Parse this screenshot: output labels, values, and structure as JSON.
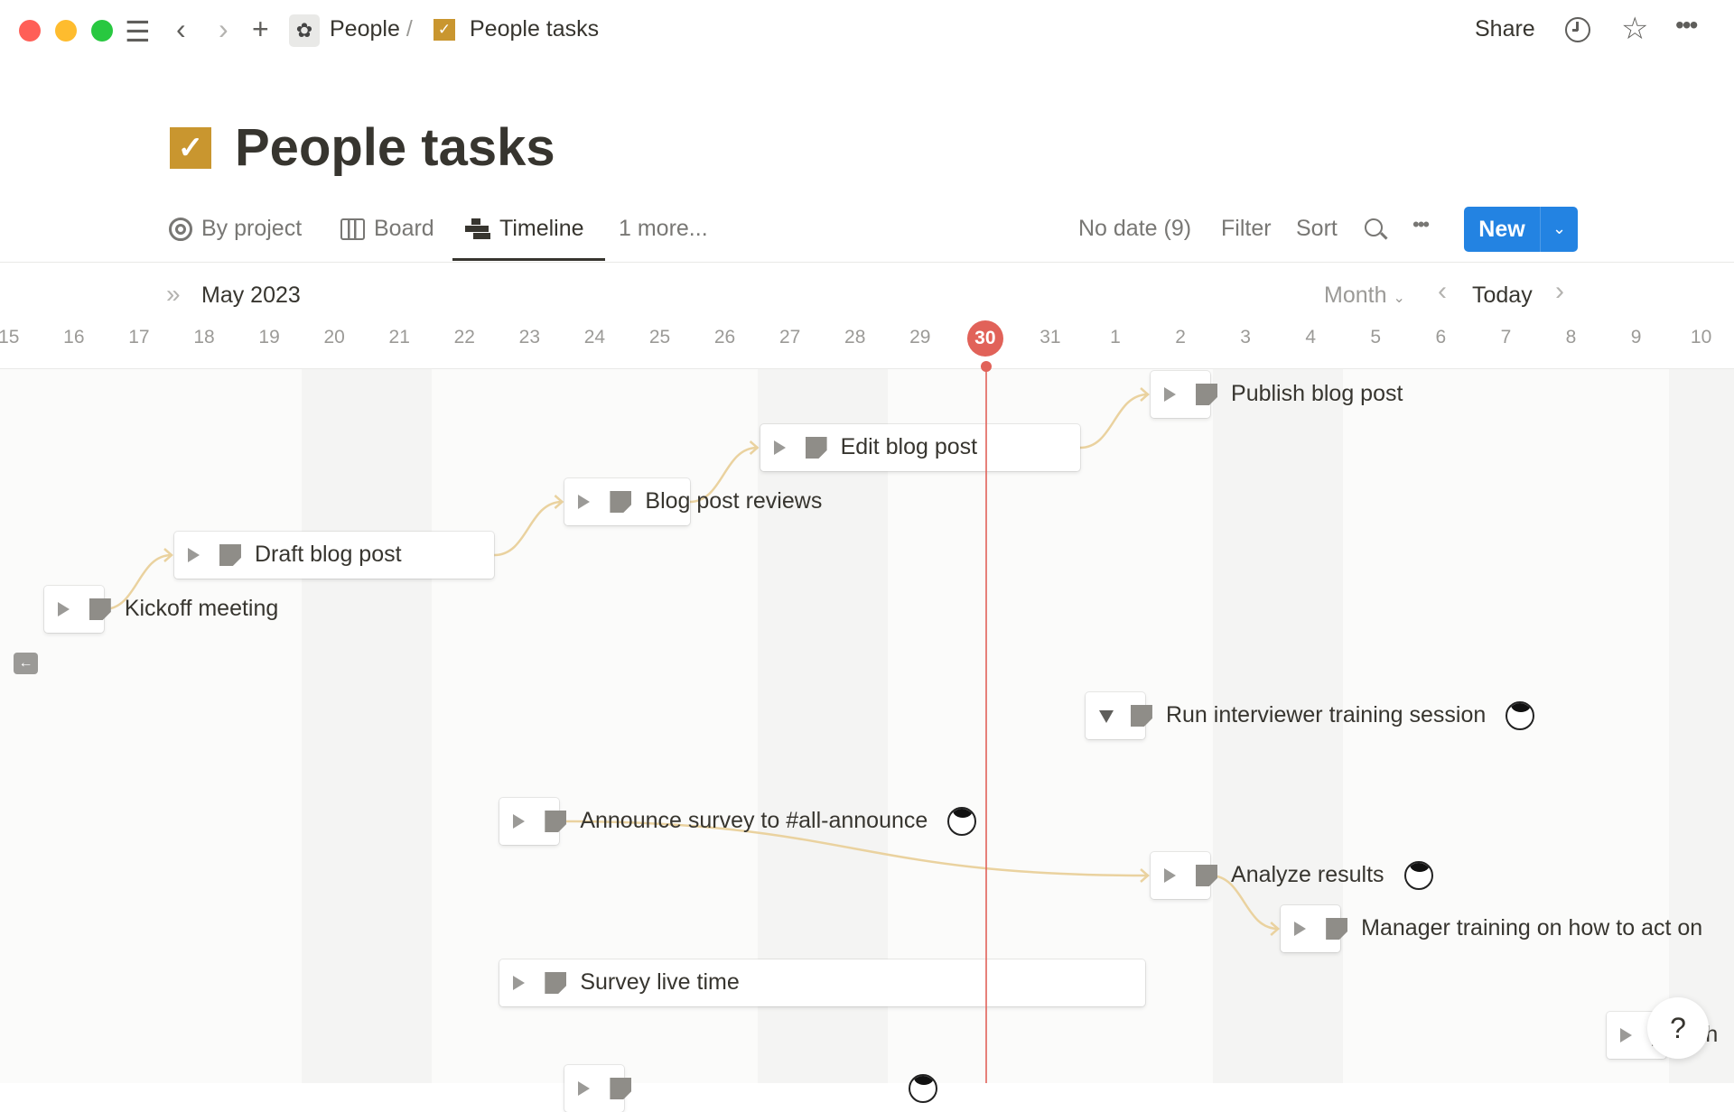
{
  "window": {
    "traffic_lights": [
      "#ff5f57",
      "#febc2e",
      "#28c840"
    ]
  },
  "topbar": {
    "breadcrumb_parent": "People",
    "breadcrumb_sep": "/",
    "breadcrumb_current": "People tasks",
    "share": "Share",
    "icons": [
      "menu-icon",
      "back-icon",
      "forward-icon",
      "plus-icon",
      "flower-icon",
      "checkbox-icon",
      "clock-icon",
      "star-icon",
      "more-icon"
    ]
  },
  "page": {
    "title": "People tasks",
    "icon_color": "#c9962f"
  },
  "views": {
    "tabs": [
      {
        "label": "By project",
        "icon": "target-icon"
      },
      {
        "label": "Board",
        "icon": "board-icon"
      },
      {
        "label": "Timeline",
        "icon": "timeline-icon",
        "active": true
      }
    ],
    "more": "1 more...",
    "no_date": "No date (9)",
    "filter": "Filter",
    "sort": "Sort",
    "new_label": "New",
    "accent": "#2383e2"
  },
  "timeline": {
    "month_label": "May 2023",
    "scale": "Month",
    "today_label": "Today",
    "today": "2023-05-30",
    "today_color": "#e16259",
    "days": [
      "15",
      "16",
      "17",
      "18",
      "19",
      "20",
      "21",
      "22",
      "23",
      "24",
      "25",
      "26",
      "27",
      "28",
      "29",
      "30",
      "31",
      "1",
      "2",
      "3",
      "4",
      "5",
      "6",
      "7",
      "8",
      "9",
      "10"
    ],
    "tasks": [
      {
        "title": "Publish blog post",
        "start": "2023-06-02",
        "end": "2023-06-02"
      },
      {
        "title": "Edit blog post",
        "start": "2023-05-27",
        "end": "2023-05-31"
      },
      {
        "title": "Blog post reviews",
        "start": "2023-05-24",
        "end": "2023-05-25"
      },
      {
        "title": "Draft blog post",
        "start": "2023-05-18",
        "end": "2023-05-22"
      },
      {
        "title": "Kickoff meeting",
        "start": "2023-05-16",
        "end": "2023-05-16"
      },
      {
        "title": "Run interviewer training session",
        "start": "2023-06-01",
        "end": "2023-06-01",
        "expanded": true,
        "avatar": true
      },
      {
        "title": "Announce survey to #all-announce",
        "start": "2023-05-23",
        "end": "2023-05-23",
        "avatar": true
      },
      {
        "title": "Analyze results",
        "start": "2023-06-02",
        "end": "2023-06-02",
        "avatar": true
      },
      {
        "title": "Manager training on how to act on",
        "start": "2023-06-04",
        "end": "2023-06-04"
      },
      {
        "title": "Survey live time",
        "start": "2023-05-23",
        "end": "2023-06-01"
      },
      {
        "title": "ath",
        "start": "2023-06-09",
        "end": "2023-06-09"
      },
      {
        "title": "",
        "start": "2023-05-24",
        "end": "2023-05-24",
        "avatar": true
      }
    ],
    "dependencies": [
      [
        "Kickoff meeting",
        "Draft blog post"
      ],
      [
        "Draft blog post",
        "Blog post reviews"
      ],
      [
        "Blog post reviews",
        "Edit blog post"
      ],
      [
        "Edit blog post",
        "Publish blog post"
      ],
      [
        "Announce survey to #all-announce",
        "Analyze results"
      ],
      [
        "Analyze results",
        "Manager training on how to act on"
      ]
    ],
    "dependency_color": "#ead29f"
  },
  "help": "?"
}
